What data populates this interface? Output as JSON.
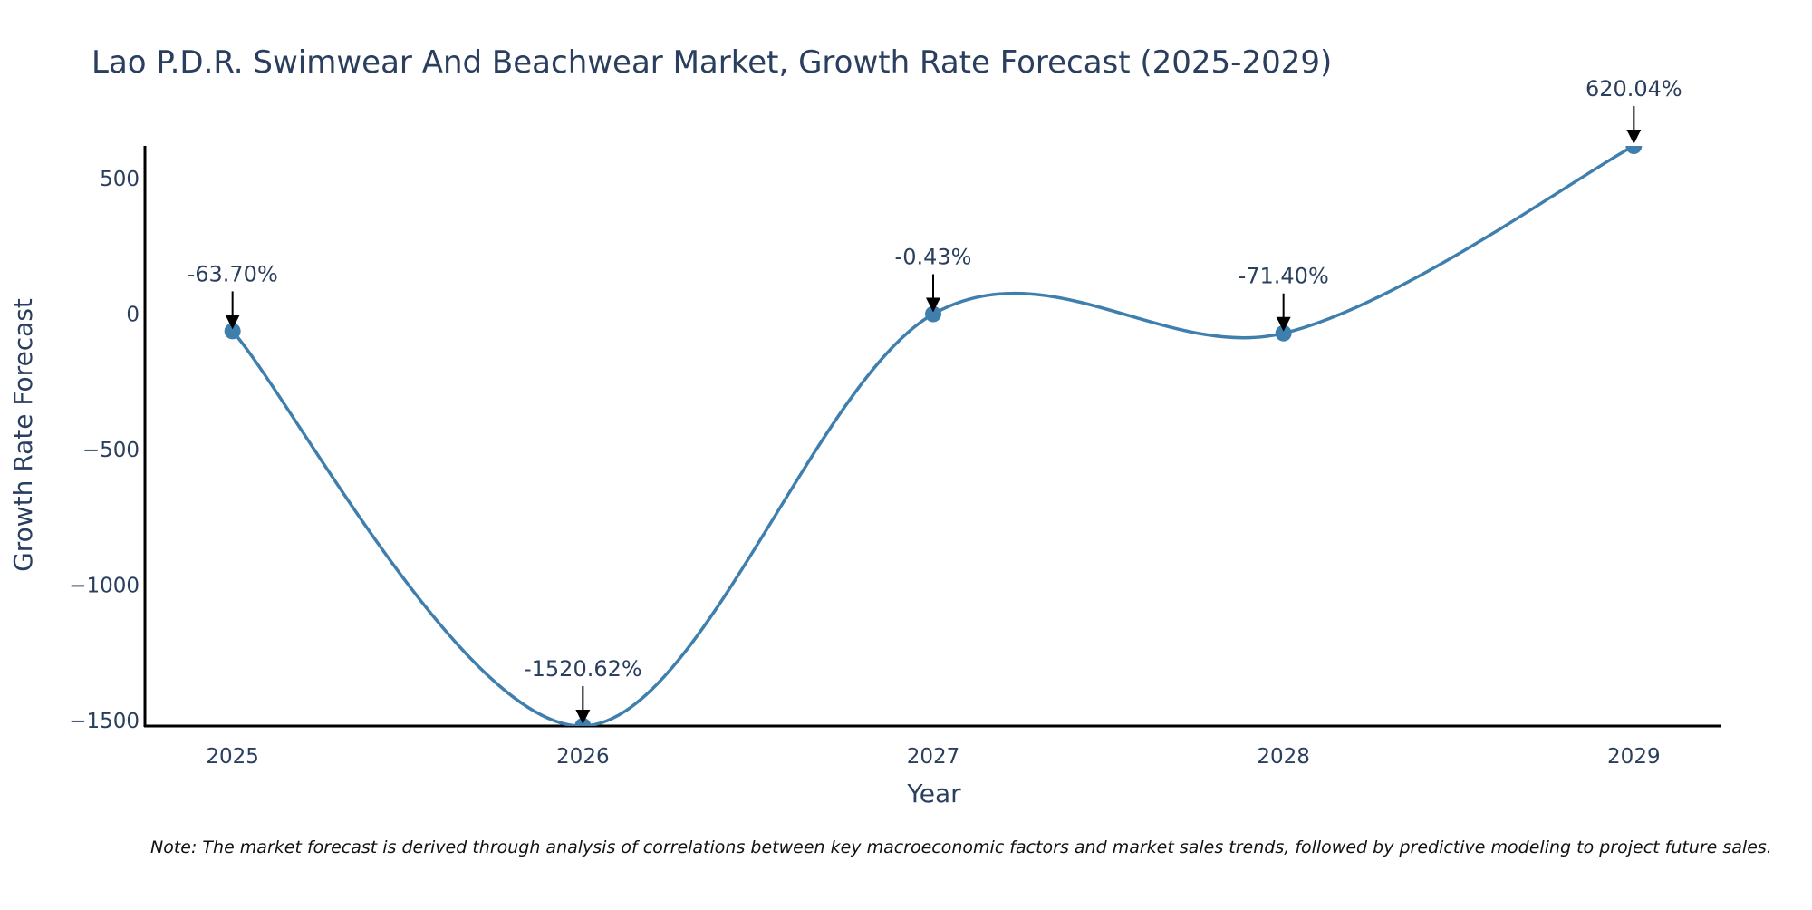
{
  "chart_data": {
    "type": "line",
    "title": "Lao P.D.R. Swimwear And Beachwear Market, Growth Rate Forecast (2025-2029)",
    "xlabel": "Year",
    "ylabel": "Growth Rate Forecast",
    "categories": [
      "2025",
      "2026",
      "2027",
      "2028",
      "2029"
    ],
    "series": [
      {
        "name": "Growth Rate Forecast",
        "values": [
          -63.7,
          -1520.62,
          -0.43,
          -71.4,
          620.04
        ],
        "labels": [
          "-63.70%",
          "-1520.62%",
          "-0.43%",
          "-71.40%",
          "620.04%"
        ]
      }
    ],
    "ylim": [
      -1520.62,
      620.04
    ],
    "xlim": [
      2024.75,
      2029.25
    ],
    "yticks": [
      -1500,
      -1000,
      -500,
      0,
      500
    ],
    "ytick_labels": [
      "−1500",
      "−1000",
      "−500",
      "0",
      "500"
    ],
    "grid": false,
    "line_color": "#3f7fae",
    "note": "Note: The market forecast is derived through analysis of correlations between key macroeconomic factors and market sales trends, followed by predictive modeling to project future sales."
  }
}
